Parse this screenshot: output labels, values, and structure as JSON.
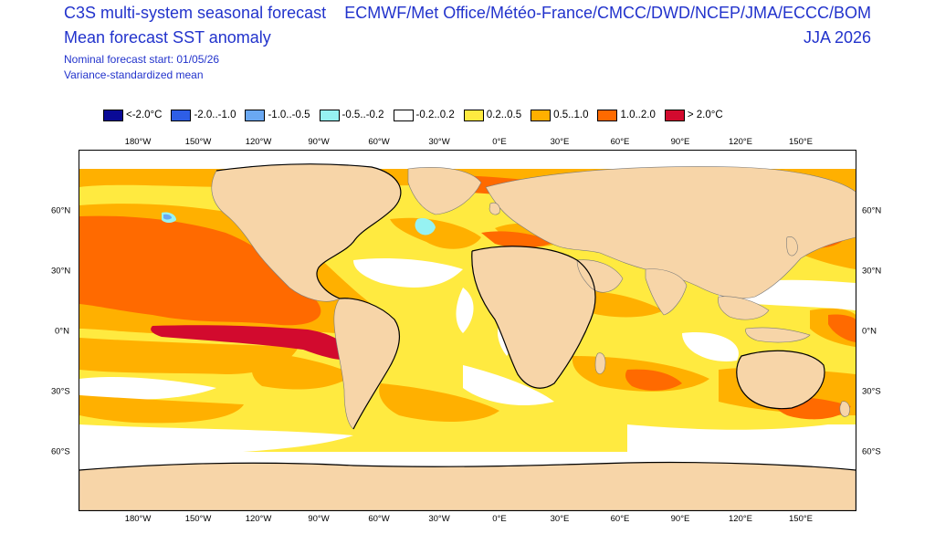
{
  "header": {
    "title_line1": "C3S multi-system seasonal forecast",
    "title_line2": "Mean forecast SST anomaly",
    "subtitle_line1": "Nominal forecast start: 01/05/26",
    "subtitle_line2": "Variance-standardized mean",
    "providers": "ECMWF/Met Office/Météo-France/CMCC/DWD/NCEP/JMA/ECCC/BOM",
    "season": "JJA 2026"
  },
  "legend": [
    {
      "label": "<-2.0°C",
      "color": "#0a0a96"
    },
    {
      "label": "-2.0..-1.0",
      "color": "#2e5ee6"
    },
    {
      "label": "-1.0..-0.5",
      "color": "#6aa8f2"
    },
    {
      "label": "-0.5..-0.2",
      "color": "#96f2f2"
    },
    {
      "label": "-0.2..0.2",
      "color": "#ffffff"
    },
    {
      "label": "0.2..0.5",
      "color": "#ffea40"
    },
    {
      "label": "0.5..1.0",
      "color": "#ffb000"
    },
    {
      "label": "1.0..2.0",
      "color": "#ff6a00"
    },
    {
      "label": "> 2.0°C",
      "color": "#d20a2e"
    }
  ],
  "lon_labels": [
    "180°W",
    "150°W",
    "120°W",
    "90°W",
    "60°W",
    "30°W",
    "0°E",
    "30°E",
    "60°E",
    "90°E",
    "120°E",
    "150°E"
  ],
  "lat_labels": [
    "60°N",
    "30°N",
    "0°N",
    "30°S",
    "60°S"
  ],
  "colors": {
    "land": "#f7d5a8",
    "coast": "#000000",
    "border": "#7a7a7a",
    "text": "#2233cc"
  }
}
